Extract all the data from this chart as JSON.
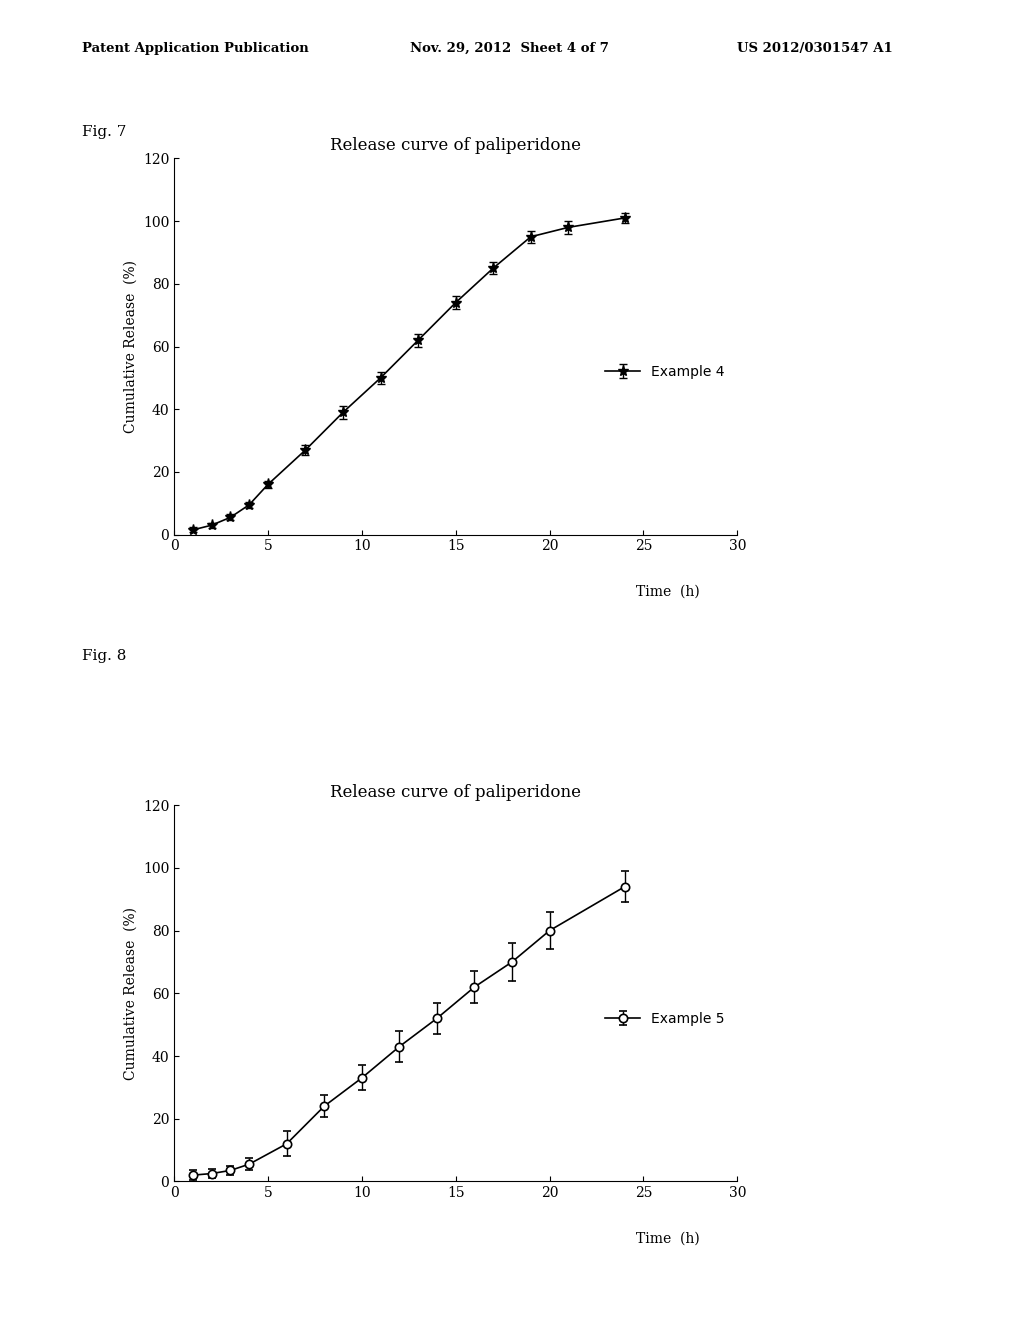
{
  "header_left": "Patent Application Publication",
  "header_mid": "Nov. 29, 2012  Sheet 4 of 7",
  "header_right": "US 2012/0301547 A1",
  "fig7_label": "Fig. 7",
  "fig8_label": "Fig. 8",
  "title": "Release curve of paliperidone",
  "ylabel": "Cumulative Release  (%)",
  "xlabel_text": "Time  (h)",
  "fig7": {
    "x": [
      1,
      2,
      3,
      4,
      5,
      7,
      9,
      11,
      13,
      15,
      17,
      19,
      21,
      24
    ],
    "y": [
      1.5,
      3.0,
      5.5,
      9.5,
      16,
      27,
      39,
      50,
      62,
      74,
      85,
      95,
      98,
      101
    ],
    "yerr": [
      0.8,
      0.8,
      1.0,
      1.0,
      1.2,
      1.5,
      2.0,
      2.0,
      2.0,
      2.0,
      2.0,
      2.0,
      2.0,
      1.5
    ],
    "legend": "Example 4",
    "marker": "*",
    "color": "black",
    "linestyle": "-"
  },
  "fig8": {
    "x": [
      1,
      2,
      3,
      4,
      6,
      8,
      10,
      12,
      14,
      16,
      18,
      20,
      24
    ],
    "y": [
      2.0,
      2.5,
      3.5,
      5.5,
      12,
      24,
      33,
      43,
      52,
      62,
      70,
      80,
      94
    ],
    "yerr": [
      1.5,
      1.5,
      1.5,
      2.0,
      4.0,
      3.5,
      4.0,
      5.0,
      5.0,
      5.0,
      6.0,
      6.0,
      5.0
    ],
    "legend": "Example 5",
    "marker": "o",
    "color": "black",
    "linestyle": "-"
  },
  "xlim": [
    0,
    30
  ],
  "xticks": [
    0,
    5,
    10,
    15,
    20,
    25,
    30
  ],
  "ylim": [
    0,
    120
  ],
  "yticks": [
    0,
    20,
    40,
    60,
    80,
    100,
    120
  ],
  "background_color": "#ffffff",
  "elinewidth": 1.0,
  "capsize": 3
}
